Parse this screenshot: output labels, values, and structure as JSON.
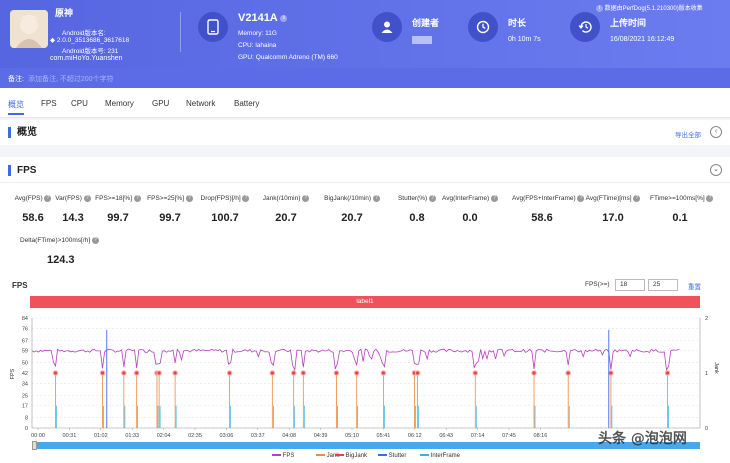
{
  "header": {
    "app_name": "原神",
    "android_version": "Android版本名:",
    "version_detail": "2.0.0_3513686_3617618",
    "android_code": "Android版本号: 231",
    "package": "com.miHoYo.Yuanshen",
    "device_name": "V2141A",
    "memory": "Memory: 11G",
    "cpu": "CPU: lahaina",
    "gpu": "GPU: Qualcomm Adreno (TM) 660",
    "creator_label": "创建者",
    "duration_label": "时长",
    "duration_value": "0h 10m 7s",
    "upload_label": "上传时间",
    "upload_value": "16/08/2021 16:12:49",
    "data_source": "数据由PerfDog(5.1.210300)版本收集"
  },
  "note": {
    "label": "备注:",
    "placeholder": "添加备注, 不超过200个字符"
  },
  "tabs": [
    "概览",
    "FPS",
    "CPU",
    "Memory",
    "GPU",
    "Network",
    "Battery"
  ],
  "overview": {
    "title": "概览",
    "export_label": "导出全部"
  },
  "fps_section": {
    "title": "FPS",
    "metrics": [
      {
        "label": "Avg(FPS)",
        "value": "58.6"
      },
      {
        "label": "Var(FPS)",
        "value": "14.3"
      },
      {
        "label": "FPS>=18[%]",
        "value": "99.7"
      },
      {
        "label": "FPS>=25[%]",
        "value": "99.7"
      },
      {
        "label": "Drop(FPS)[/h]",
        "value": "100.7"
      },
      {
        "label": "Jank(/10min)",
        "value": "20.7"
      },
      {
        "label": "BigJank(/10min)",
        "value": "20.7"
      },
      {
        "label": "Stutter(%)",
        "value": "0.8"
      },
      {
        "label": "Avg(InterFrame)",
        "value": "0.0"
      },
      {
        "label": "Avg(FPS+InterFrame)",
        "value": "58.6"
      },
      {
        "label": "Avg(FTime)[ms]",
        "value": "17.0"
      },
      {
        "label": "FTime>=100ms[%]",
        "value": "0.1"
      }
    ],
    "extra_metric": {
      "label": "Delta(FTime)>100ms[/h]",
      "value": "124.3"
    }
  },
  "chart_controls": {
    "title": "FPS",
    "fps_threshold_label": "FPS(>=)",
    "input1": "18",
    "input2": "25",
    "reset_label": "重置",
    "band_label": "label1"
  },
  "chart_data": {
    "type": "line",
    "x_ticks": [
      "00:00",
      "00:31",
      "01:02",
      "01:33",
      "02:04",
      "02:35",
      "03:06",
      "03:37",
      "04:08",
      "04:39",
      "05:10",
      "05:41",
      "06:12",
      "06:43",
      "07:14",
      "07:45",
      "08:16"
    ],
    "y_left_ticks": [
      0,
      8,
      17,
      25,
      34,
      42,
      50,
      59,
      67,
      76,
      84
    ],
    "y_right_ticks": [
      0,
      1,
      2
    ],
    "ylim_left": [
      0,
      84
    ],
    "ylim_right": [
      0,
      2
    ],
    "xlabel": "",
    "ylabel_left": "FPS",
    "ylabel_right": "Jank",
    "fps_base": 59,
    "jank_times_s": [
      22,
      66,
      86,
      98,
      117,
      119,
      134,
      185,
      225,
      245,
      254,
      285,
      304,
      329,
      358,
      361,
      415,
      470,
      502,
      542,
      595
    ],
    "stutter_spike_times_s": [
      70,
      540
    ],
    "legend": [
      {
        "name": "FPS",
        "color": "#b63fc0"
      },
      {
        "name": "Jank",
        "color": "#f08a3c"
      },
      {
        "name": "BigJank",
        "color": "#e04545"
      },
      {
        "name": "Stutter",
        "color": "#3d6ae8"
      },
      {
        "name": "InterFrame",
        "color": "#3cb0e0"
      }
    ]
  },
  "watermark": "头条 @泡泡网"
}
